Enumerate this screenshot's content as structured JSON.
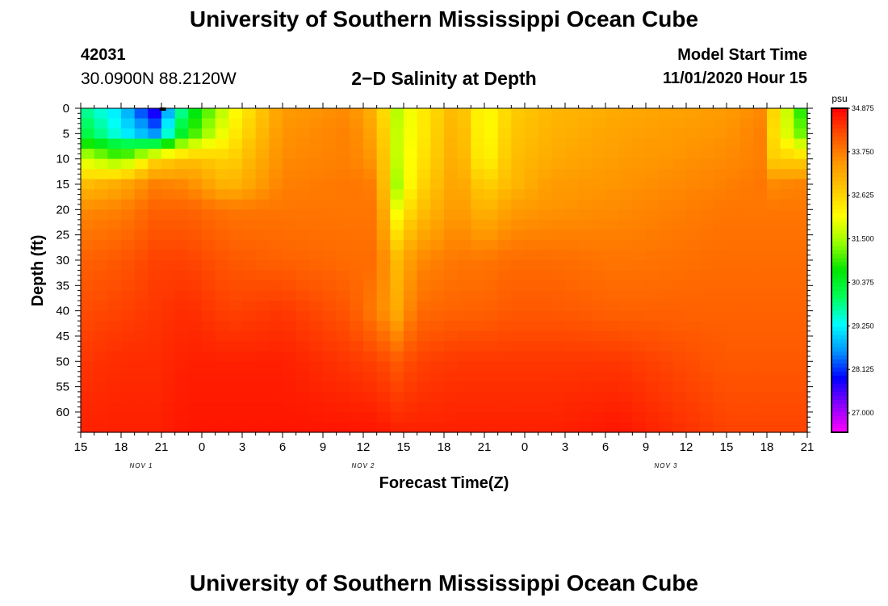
{
  "header": {
    "title": "University of Southern Mississippi Ocean Cube",
    "station_id": "42031",
    "coords": "30.0900N 88.2120W",
    "plot_title": "2−D Salinity at Depth",
    "model_start_label": "Model Start Time",
    "model_start_value": "11/01/2020 Hour 15"
  },
  "footer": {
    "title": "University of Southern Mississippi Ocean Cube"
  },
  "colors": {
    "scale": [
      "#ff00ff",
      "#8c00ff",
      "#0000ff",
      "#0096ff",
      "#00ffff",
      "#00ff5a",
      "#00e600",
      "#96ff00",
      "#ffff00",
      "#ffc800",
      "#ff9600",
      "#ff5000",
      "#ff0000"
    ]
  },
  "chart_data": {
    "type": "heatmap",
    "title": "2−D Salinity at Depth",
    "xlabel": "Forecast Time(Z)",
    "ylabel": "Depth (ft)",
    "x_hours": [
      0,
      6,
      12,
      18,
      24,
      30,
      36,
      42,
      48,
      54,
      60,
      66,
      72,
      78,
      84,
      90,
      96,
      102,
      108,
      114,
      120,
      126,
      132,
      138,
      144,
      150,
      156,
      162,
      168,
      174,
      180,
      186,
      192,
      198,
      204,
      210,
      216,
      222,
      228,
      234,
      240,
      246,
      252,
      258,
      264,
      270,
      276,
      282,
      288,
      294,
      300,
      306,
      312,
      318,
      324
    ],
    "x_range": [
      0,
      54
    ],
    "y_range": [
      0,
      64
    ],
    "x_ticks": [
      "15",
      "18",
      "21",
      "0",
      "3",
      "6",
      "9",
      "12",
      "15",
      "18",
      "21",
      "0",
      "3",
      "6",
      "9",
      "12",
      "15",
      "18",
      "21"
    ],
    "date_labels": [
      {
        "label": "NOV 1",
        "hour": 4.5
      },
      {
        "label": "NOV 2",
        "hour": 21
      },
      {
        "label": "NOV 3",
        "hour": 43.5
      }
    ],
    "y_ticks": [
      0,
      5,
      10,
      15,
      20,
      25,
      30,
      35,
      40,
      45,
      50,
      55,
      60
    ],
    "colorbar": {
      "unit": "psu",
      "min": 26.5,
      "max": 34.875,
      "tick_labels": [
        "34.875",
        "33.750",
        "32.625",
        "31.500",
        "30.375",
        "29.250",
        "28.125",
        "27.000"
      ]
    },
    "salinity_profiles": [
      {
        "hour": 0,
        "depths": [
          0,
          5,
          10,
          15,
          20,
          30,
          40,
          50,
          64
        ],
        "values": [
          29.8,
          30.3,
          31.8,
          32.9,
          33.6,
          34.0,
          34.2,
          34.4,
          34.6
        ]
      },
      {
        "hour": 3,
        "depths": [
          0,
          5,
          10,
          15,
          20,
          30,
          40,
          50,
          64
        ],
        "values": [
          29.0,
          29.3,
          31.2,
          33.2,
          33.7,
          34.1,
          34.3,
          34.5,
          34.6
        ]
      },
      {
        "hour": 5.5,
        "depths": [
          0,
          5,
          10,
          15,
          20,
          30,
          40,
          50,
          64
        ],
        "values": [
          27.6,
          28.6,
          32.5,
          33.7,
          34.0,
          34.3,
          34.4,
          34.5,
          34.6
        ]
      },
      {
        "hour": 8,
        "depths": [
          0,
          5,
          10,
          15,
          20,
          30,
          40,
          50,
          64
        ],
        "values": [
          30.2,
          30.8,
          32.9,
          33.6,
          34.0,
          34.3,
          34.5,
          34.6,
          34.7
        ]
      },
      {
        "hour": 11,
        "depths": [
          0,
          5,
          10,
          15,
          20,
          30,
          40,
          50,
          64
        ],
        "values": [
          31.9,
          32.2,
          32.6,
          33.0,
          33.8,
          34.1,
          34.3,
          34.6,
          34.7
        ]
      },
      {
        "hour": 15,
        "depths": [
          0,
          5,
          10,
          15,
          20,
          30,
          40,
          50,
          64
        ],
        "values": [
          33.4,
          33.5,
          33.6,
          33.7,
          33.8,
          34.0,
          34.4,
          34.6,
          34.7
        ]
      },
      {
        "hour": 20,
        "depths": [
          0,
          5,
          10,
          15,
          20,
          30,
          40,
          50,
          64
        ],
        "values": [
          33.6,
          33.7,
          33.7,
          33.8,
          33.8,
          33.9,
          34.1,
          34.4,
          34.7
        ]
      },
      {
        "hour": 22,
        "depths": [
          0,
          5,
          10,
          15,
          20,
          30,
          40,
          50,
          64
        ],
        "values": [
          33.0,
          33.2,
          33.4,
          33.7,
          33.8,
          33.9,
          33.7,
          34.3,
          34.7
        ]
      },
      {
        "hour": 23.5,
        "depths": [
          0,
          5,
          10,
          15,
          20,
          30,
          40,
          50,
          64
        ],
        "values": [
          31.6,
          31.7,
          31.7,
          31.5,
          32.0,
          33.0,
          33.2,
          34.1,
          34.6
        ]
      },
      {
        "hour": 25,
        "depths": [
          0,
          5,
          10,
          15,
          20,
          30,
          40,
          50,
          64
        ],
        "values": [
          32.2,
          32.2,
          32.3,
          32.5,
          32.8,
          33.6,
          33.9,
          34.3,
          34.6
        ]
      },
      {
        "hour": 28,
        "depths": [
          0,
          5,
          10,
          15,
          20,
          30,
          40,
          50,
          64
        ],
        "values": [
          33.1,
          33.2,
          33.3,
          33.4,
          33.5,
          33.8,
          34.0,
          34.4,
          34.6
        ]
      },
      {
        "hour": 30,
        "depths": [
          0,
          5,
          10,
          15,
          20,
          30,
          40,
          50,
          64
        ],
        "values": [
          32.0,
          32.0,
          32.1,
          32.6,
          33.0,
          33.8,
          34.0,
          34.4,
          34.6
        ]
      },
      {
        "hour": 32,
        "depths": [
          0,
          5,
          10,
          15,
          20,
          30,
          40,
          50,
          64
        ],
        "values": [
          32.7,
          32.8,
          32.9,
          33.0,
          33.4,
          33.9,
          34.1,
          34.4,
          34.6
        ]
      },
      {
        "hour": 35,
        "depths": [
          0,
          5,
          10,
          15,
          20,
          30,
          40,
          50,
          64
        ],
        "values": [
          33.0,
          33.1,
          33.2,
          33.4,
          33.5,
          33.9,
          34.1,
          34.4,
          34.6
        ]
      },
      {
        "hour": 40,
        "depths": [
          0,
          5,
          10,
          15,
          20,
          30,
          40,
          50,
          64
        ],
        "values": [
          33.2,
          33.3,
          33.4,
          33.5,
          33.6,
          33.8,
          34.0,
          34.4,
          34.7
        ]
      },
      {
        "hour": 48,
        "depths": [
          0,
          5,
          10,
          15,
          20,
          30,
          40,
          50,
          64
        ],
        "values": [
          33.4,
          33.5,
          33.6,
          33.7,
          33.8,
          33.9,
          34.0,
          34.1,
          34.3
        ]
      },
      {
        "hour": 50.5,
        "depths": [
          0,
          5,
          10,
          15,
          20,
          30,
          40,
          50,
          64
        ],
        "values": [
          33.6,
          33.7,
          33.7,
          33.8,
          33.8,
          33.9,
          34.0,
          34.1,
          34.3
        ]
      },
      {
        "hour": 51.5,
        "depths": [
          0,
          5,
          10,
          15,
          20,
          30,
          40,
          50,
          64
        ],
        "values": [
          32.6,
          32.5,
          32.7,
          33.6,
          33.8,
          33.9,
          34.0,
          34.1,
          34.3
        ]
      },
      {
        "hour": 54,
        "depths": [
          0,
          5,
          10,
          15,
          20,
          30,
          40,
          50,
          64
        ],
        "values": [
          30.4,
          30.9,
          32.6,
          33.7,
          33.8,
          33.9,
          34.0,
          34.1,
          34.3
        ]
      }
    ]
  }
}
